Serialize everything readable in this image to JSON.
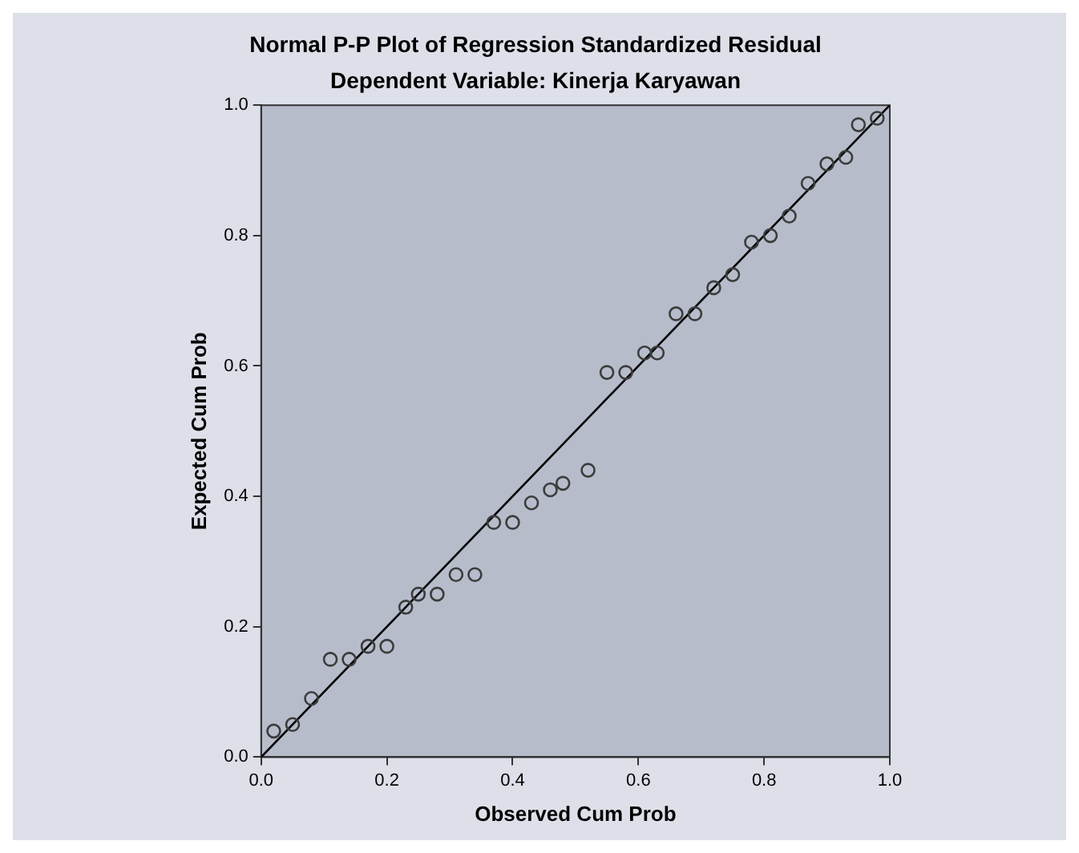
{
  "chart_data": {
    "type": "scatter",
    "title": "Normal P-P Plot of Regression Standardized Residual",
    "subtitle": "Dependent Variable: Kinerja Karyawan",
    "xlabel": "Observed Cum Prob",
    "ylabel": "Expected Cum Prob",
    "xlim": [
      0,
      1
    ],
    "ylim": [
      0,
      1
    ],
    "xticks": [
      {
        "value": 0,
        "label": "0.0"
      },
      0.2,
      0.4,
      0.6,
      0.8,
      {
        "value": 1,
        "label": "1.0"
      }
    ],
    "yticks": [
      {
        "value": 0,
        "label": "0.0"
      },
      0.2,
      0.4,
      0.6,
      0.8,
      {
        "value": 1,
        "label": "1.0"
      }
    ],
    "grid": false,
    "legend": false,
    "series": [
      {
        "color": "#3c3c3c",
        "marker": "circle",
        "x": [
          0.02,
          0.05,
          0.08,
          0.11,
          0.14,
          0.17,
          0.2,
          0.23,
          0.25,
          0.28,
          0.31,
          0.34,
          0.37,
          0.4,
          0.43,
          0.46,
          0.48,
          0.52,
          0.55,
          0.58,
          0.61,
          0.63,
          0.66,
          0.69,
          0.72,
          0.75,
          0.78,
          0.81,
          0.84,
          0.87,
          0.9,
          0.93,
          0.95,
          0.98
        ],
        "values": [
          0.04,
          0.05,
          0.09,
          0.15,
          0.15,
          0.17,
          0.17,
          0.23,
          0.25,
          0.25,
          0.28,
          0.28,
          0.36,
          0.36,
          0.39,
          0.41,
          0.42,
          0.44,
          0.59,
          0.59,
          0.62,
          0.62,
          0.68,
          0.68,
          0.72,
          0.74,
          0.79,
          0.8,
          0.83,
          0.88,
          0.91,
          0.92,
          0.97,
          0.98
        ]
      },
      {
        "type": "line",
        "color": "#000000",
        "marker": "none",
        "line_style": "solid",
        "x": [
          0,
          1
        ],
        "values": [
          0,
          1
        ]
      }
    ]
  }
}
